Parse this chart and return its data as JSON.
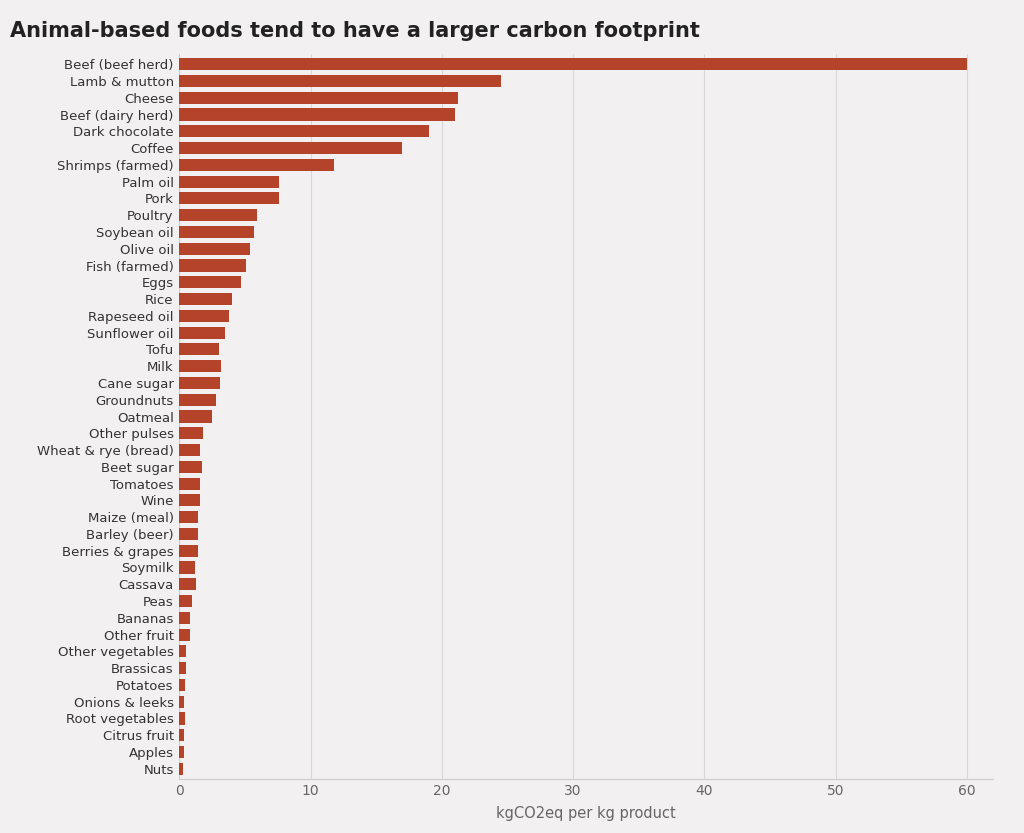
{
  "title": "Animal-based foods tend to have a larger carbon footprint",
  "xlabel": "kgCO2eq per kg product",
  "background_color": "#f2f0f0",
  "plot_bg_color": "#f2f0f0",
  "bar_color": "#b5432a",
  "categories": [
    "Beef (beef herd)",
    "Lamb & mutton",
    "Cheese",
    "Beef (dairy herd)",
    "Dark chocolate",
    "Coffee",
    "Shrimps (farmed)",
    "Palm oil",
    "Pork",
    "Poultry",
    "Soybean oil",
    "Olive oil",
    "Fish (farmed)",
    "Eggs",
    "Rice",
    "Rapeseed oil",
    "Sunflower oil",
    "Tofu",
    "Milk",
    "Cane sugar",
    "Groundnuts",
    "Oatmeal",
    "Other pulses",
    "Wheat & rye (bread)",
    "Beet sugar",
    "Tomatoes",
    "Wine",
    "Maize (meal)",
    "Barley (beer)",
    "Berries & grapes",
    "Soymilk",
    "Cassava",
    "Peas",
    "Bananas",
    "Other fruit",
    "Other vegetables",
    "Brassicas",
    "Potatoes",
    "Onions & leeks",
    "Root vegetables",
    "Citrus fruit",
    "Apples",
    "Nuts"
  ],
  "values": [
    60.0,
    24.5,
    21.2,
    21.0,
    19.0,
    17.0,
    11.8,
    7.6,
    7.6,
    5.9,
    5.7,
    5.4,
    5.1,
    4.7,
    4.0,
    3.8,
    3.5,
    3.0,
    3.2,
    3.1,
    2.8,
    2.5,
    1.8,
    1.6,
    1.7,
    1.6,
    1.6,
    1.4,
    1.4,
    1.4,
    1.2,
    1.3,
    0.98,
    0.86,
    0.8,
    0.53,
    0.53,
    0.46,
    0.39,
    0.43,
    0.39,
    0.35,
    0.26
  ],
  "xlim": [
    0,
    62
  ],
  "xticks": [
    0,
    10,
    20,
    30,
    40,
    50,
    60
  ],
  "title_fontsize": 15,
  "label_fontsize": 9.5,
  "tick_fontsize": 10,
  "xlabel_fontsize": 10.5,
  "bar_height": 0.72
}
